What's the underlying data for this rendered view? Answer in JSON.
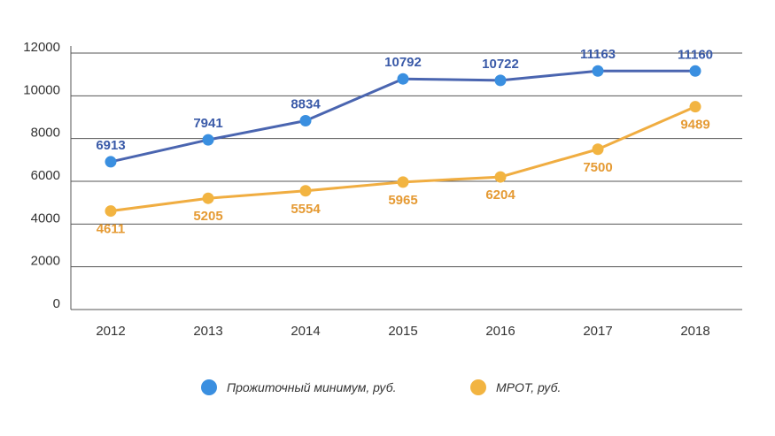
{
  "chart_data": {
    "type": "line",
    "categories": [
      "2012",
      "2013",
      "2014",
      "2015",
      "2016",
      "2017",
      "2018"
    ],
    "ylim": [
      0,
      12000
    ],
    "yticks": [
      0,
      2000,
      4000,
      6000,
      8000,
      10000,
      12000
    ],
    "ytick_labels": [
      "0",
      "2000",
      "4000",
      "6000",
      "8000",
      "10000",
      "12000"
    ],
    "grid": true,
    "legend_position": "bottom",
    "series": [
      {
        "name": "Прожиточный минимум, руб.",
        "color": "#4a65b0",
        "marker_color": "#3a8fe0",
        "values": [
          6913,
          7941,
          8834,
          10792,
          10722,
          11163,
          11160
        ],
        "labels": [
          "6913",
          "7941",
          "8834",
          "10792",
          "10722",
          "11163",
          "11160"
        ],
        "label_color": "#3a5aa8",
        "label_position": "above"
      },
      {
        "name": "МРОТ, руб.",
        "color": "#f0ad41",
        "marker_color": "#f2b441",
        "values": [
          4611,
          5205,
          5554,
          5965,
          6204,
          7500,
          9489
        ],
        "labels": [
          "4611",
          "5205",
          "5554",
          "5965",
          "6204",
          "7500",
          "9489"
        ],
        "label_color": "#e59a33",
        "label_position": "below"
      }
    ]
  }
}
